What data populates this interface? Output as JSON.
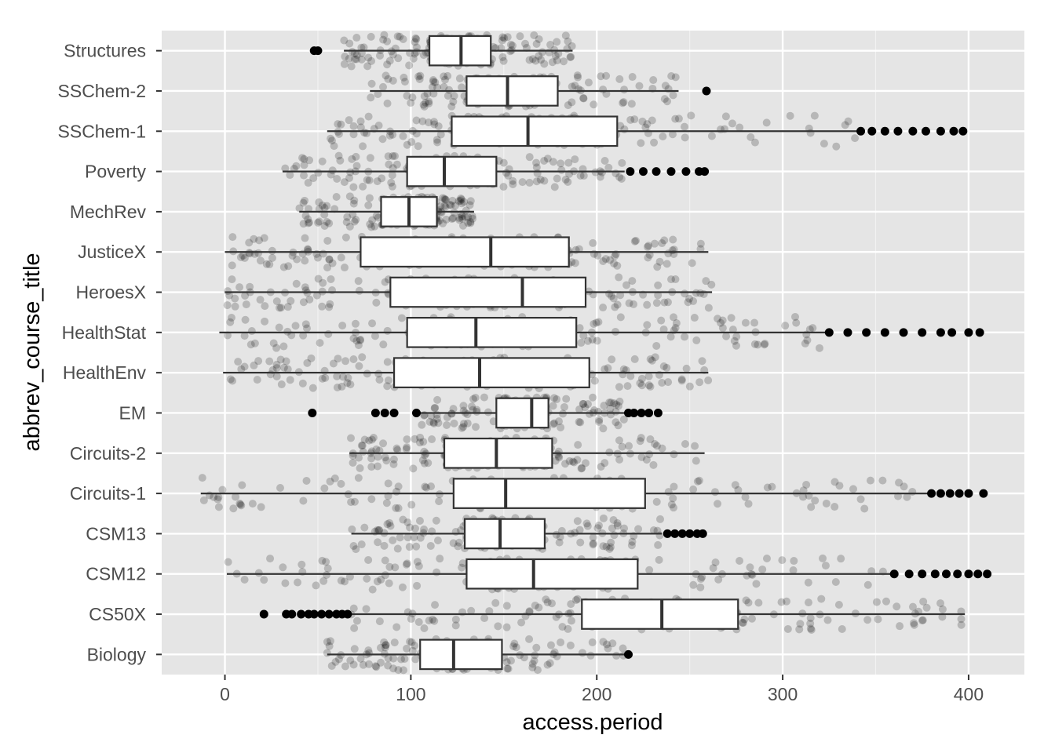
{
  "chart_data": {
    "type": "boxplot",
    "orientation": "horizontal",
    "xlabel": "access.period",
    "ylabel": "abbrev_course_title",
    "xlim": [
      -34,
      430
    ],
    "x_ticks": [
      0,
      100,
      200,
      300,
      400
    ],
    "grid": true,
    "legend": "none",
    "overlay": "jittered points (semi-transparent black)",
    "colors": {
      "panel": "#e5e5e5",
      "grid": "#ffffff",
      "box_fill": "#ffffff",
      "box_line": "#333333",
      "points": "#000000"
    },
    "categories": [
      "Biology",
      "CS50X",
      "CSM12",
      "CSM13",
      "Circuits-1",
      "Circuits-2",
      "EM",
      "HealthEnv",
      "HealthStat",
      "HeroesX",
      "JusticeX",
      "MechRev",
      "Poverty",
      "SSChem-1",
      "SSChem-2",
      "Structures"
    ],
    "boxes": [
      {
        "name": "Biology",
        "whisker_low": 55,
        "q1": 105,
        "median": 123,
        "q3": 149,
        "whisker_high": 215,
        "outliers": [
          217
        ]
      },
      {
        "name": "CS50X",
        "whisker_low": 68,
        "q1": 192,
        "median": 235,
        "q3": 276,
        "whisker_high": 398,
        "outliers": [
          21,
          33,
          36,
          41,
          45,
          48,
          52,
          56,
          60,
          63,
          66
        ]
      },
      {
        "name": "CSM12",
        "whisker_low": 1,
        "q1": 130,
        "median": 166,
        "q3": 222,
        "whisker_high": 358,
        "outliers": [
          360,
          368,
          375,
          382,
          388,
          394,
          400,
          405,
          410
        ]
      },
      {
        "name": "CSM13",
        "whisker_low": 68,
        "q1": 129,
        "median": 148,
        "q3": 172,
        "whisker_high": 235,
        "outliers": [
          238,
          242,
          246,
          250,
          254,
          257
        ]
      },
      {
        "name": "Circuits-1",
        "whisker_low": -13,
        "q1": 123,
        "median": 151,
        "q3": 226,
        "whisker_high": 378,
        "outliers": [
          380,
          385,
          390,
          395,
          400,
          408
        ]
      },
      {
        "name": "Circuits-2",
        "whisker_low": 67,
        "q1": 118,
        "median": 146,
        "q3": 176,
        "whisker_high": 258,
        "outliers": []
      },
      {
        "name": "EM",
        "whisker_low": 105,
        "q1": 146,
        "median": 165,
        "q3": 174,
        "whisker_high": 215,
        "outliers": [
          47,
          81,
          86,
          91,
          103,
          217,
          220,
          224,
          228,
          233
        ]
      },
      {
        "name": "HealthEnv",
        "whisker_low": -1,
        "q1": 91,
        "median": 137,
        "q3": 196,
        "whisker_high": 260,
        "outliers": []
      },
      {
        "name": "HealthStat",
        "whisker_low": -3,
        "q1": 98,
        "median": 135,
        "q3": 189,
        "whisker_high": 323,
        "outliers": [
          325,
          335,
          345,
          355,
          365,
          375,
          385,
          391,
          400,
          406
        ]
      },
      {
        "name": "HeroesX",
        "whisker_low": 0,
        "q1": 89,
        "median": 160,
        "q3": 194,
        "whisker_high": 262,
        "outliers": []
      },
      {
        "name": "JusticeX",
        "whisker_low": 0,
        "q1": 73,
        "median": 143,
        "q3": 185,
        "whisker_high": 260,
        "outliers": []
      },
      {
        "name": "MechRev",
        "whisker_low": 40,
        "q1": 84,
        "median": 99,
        "q3": 114,
        "whisker_high": 134,
        "outliers": []
      },
      {
        "name": "Poverty",
        "whisker_low": 31,
        "q1": 98,
        "median": 118,
        "q3": 146,
        "whisker_high": 215,
        "outliers": [
          218,
          225,
          232,
          240,
          248,
          255,
          258
        ]
      },
      {
        "name": "SSChem-1",
        "whisker_low": 55,
        "q1": 122,
        "median": 163,
        "q3": 211,
        "whisker_high": 340,
        "outliers": [
          342,
          348,
          355,
          362,
          370,
          377,
          385,
          392,
          397
        ]
      },
      {
        "name": "SSChem-2",
        "whisker_low": 78,
        "q1": 130,
        "median": 152,
        "q3": 179,
        "whisker_high": 244,
        "outliers": [
          259
        ]
      },
      {
        "name": "Structures",
        "whisker_low": 64,
        "q1": 110,
        "median": 127,
        "q3": 143,
        "whisker_high": 187,
        "outliers": [
          48,
          50
        ]
      }
    ]
  }
}
